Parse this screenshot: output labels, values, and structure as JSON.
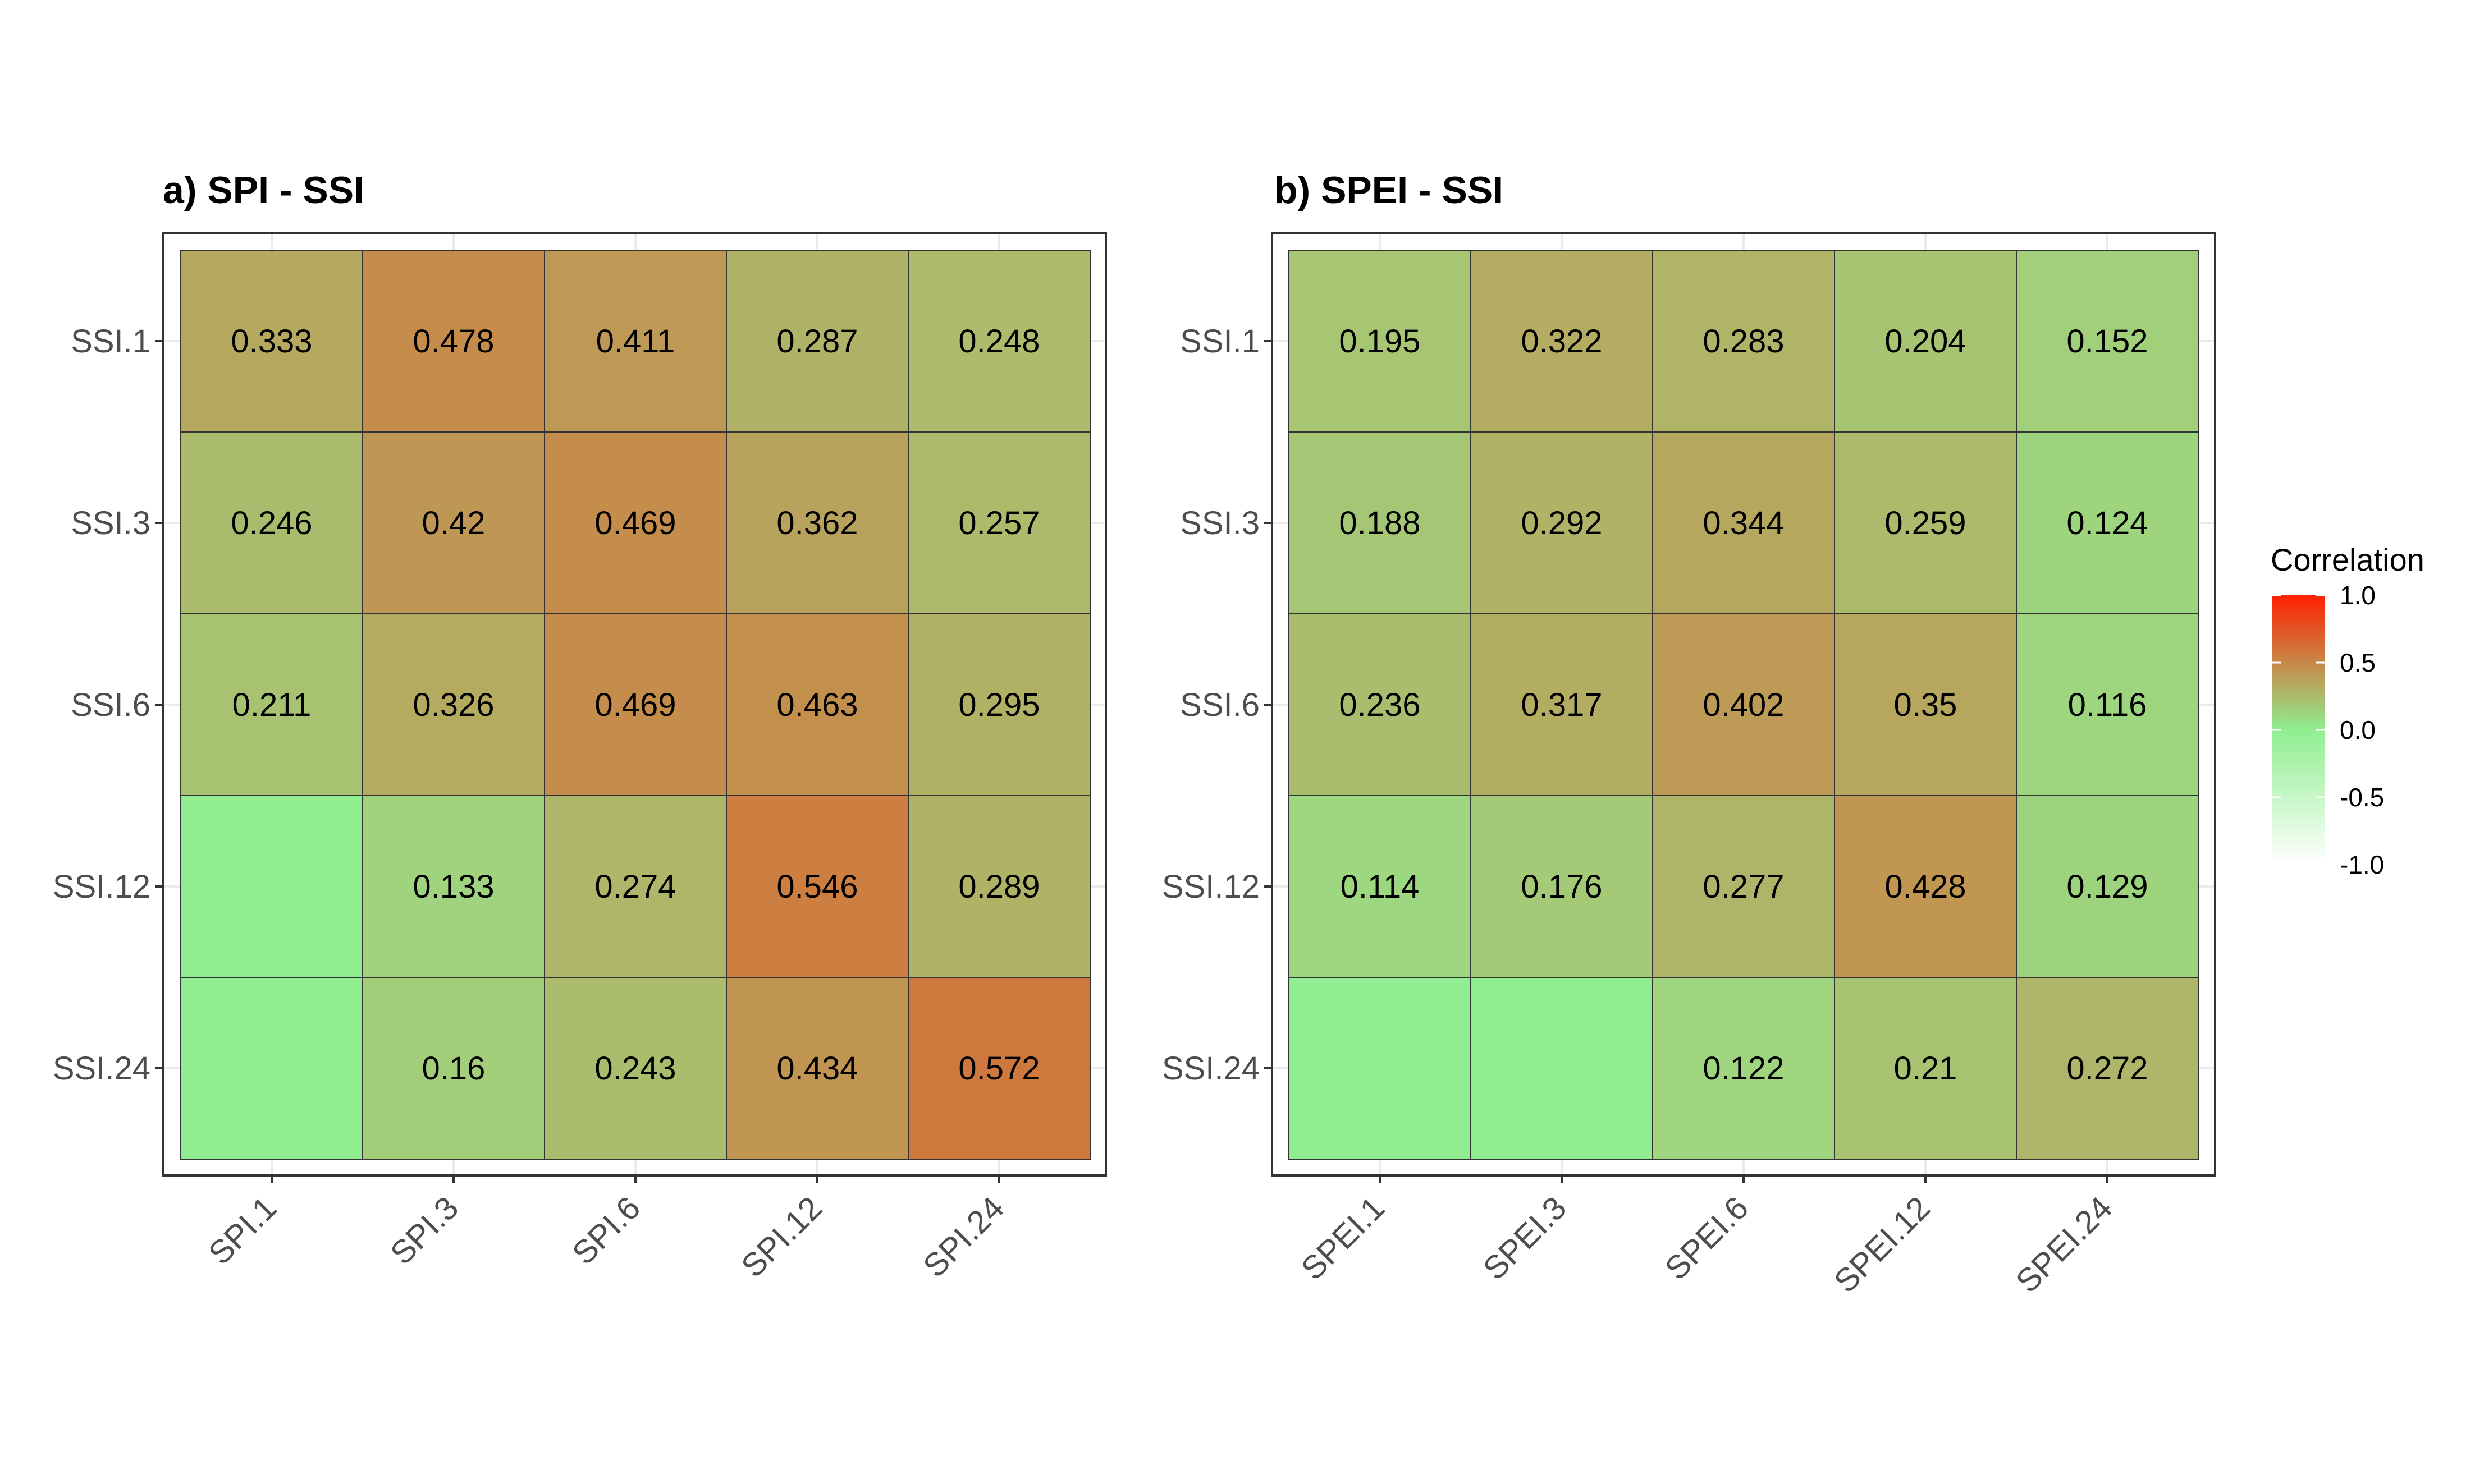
{
  "chart_data": [
    {
      "type": "heatmap",
      "title": "a) SPI - SSI",
      "xlabel": "",
      "ylabel": "",
      "x": [
        "SPI.1",
        "SPI.3",
        "SPI.6",
        "SPI.12",
        "SPI.24"
      ],
      "y": [
        "SSI.1",
        "SSI.3",
        "SSI.6",
        "SSI.12",
        "SSI.24"
      ],
      "values": [
        [
          0.333,
          0.478,
          0.411,
          0.287,
          0.248
        ],
        [
          0.246,
          0.42,
          0.469,
          0.362,
          0.257
        ],
        [
          0.211,
          0.326,
          0.469,
          0.463,
          0.295
        ],
        [
          null,
          0.133,
          0.274,
          0.546,
          0.289
        ],
        [
          null,
          0.16,
          0.243,
          0.434,
          0.572
        ]
      ],
      "grid": true
    },
    {
      "type": "heatmap",
      "title": "b) SPEI - SSI",
      "xlabel": "",
      "ylabel": "",
      "x": [
        "SPEI.1",
        "SPEI.3",
        "SPEI.6",
        "SPEI.12",
        "SPEI.24"
      ],
      "y": [
        "SSI.1",
        "SSI.3",
        "SSI.6",
        "SSI.12",
        "SSI.24"
      ],
      "values": [
        [
          0.195,
          0.322,
          0.283,
          0.204,
          0.152
        ],
        [
          0.188,
          0.292,
          0.344,
          0.259,
          0.124
        ],
        [
          0.236,
          0.317,
          0.402,
          0.35,
          0.116
        ],
        [
          0.114,
          0.176,
          0.277,
          0.428,
          0.129
        ],
        [
          null,
          null,
          0.122,
          0.21,
          0.272
        ]
      ],
      "grid": true
    }
  ],
  "legend": {
    "title": "Correlation",
    "placement": "right",
    "range": [
      -1,
      1
    ],
    "ticks": [
      1.0,
      0.5,
      0.0,
      -0.5,
      -1.0
    ],
    "tick_labels": [
      "1.0",
      "0.5",
      "0.0",
      "-0.5",
      "-1.0"
    ],
    "colors": {
      "low": "#ffffff",
      "mid": "#90ee90",
      "high": "#ff2000"
    }
  },
  "colors": {
    "tile_border": "#333333",
    "panel_border": "#333333",
    "gridline": "#ebebeb"
  }
}
